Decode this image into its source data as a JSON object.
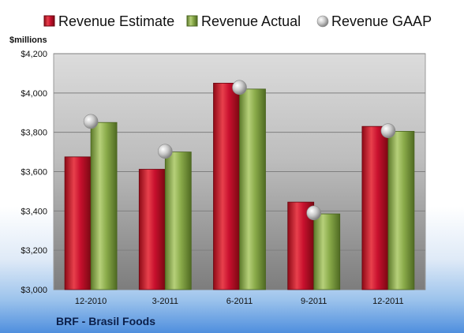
{
  "chart_data": {
    "type": "bar",
    "categories": [
      "12-2010",
      "3-2011",
      "6-2011",
      "9-2011",
      "12-2011"
    ],
    "series": [
      {
        "name": "Revenue Estimate",
        "values": [
          3675,
          3612,
          4050,
          3445,
          3830
        ],
        "color": "#c8102e"
      },
      {
        "name": "Revenue Actual",
        "values": [
          3850,
          3700,
          4020,
          3385,
          3805
        ],
        "color": "#8aab4a"
      },
      {
        "name": "Revenue GAAP",
        "values": [
          3855,
          3703,
          4028,
          3390,
          3808
        ],
        "color": "#c7c7c7",
        "marker": "sphere"
      }
    ],
    "ylabel": "$millions",
    "ylim": [
      3000,
      4200
    ],
    "yticks": [
      3000,
      3200,
      3400,
      3600,
      3800,
      4000,
      4200
    ],
    "ytick_labels": [
      "$3,000",
      "$3,200",
      "$3,400",
      "$3,600",
      "$3,800",
      "$4,000",
      "$4,200"
    ],
    "grid": true,
    "legend_position": "top"
  },
  "company": "BRF - Brasil Foods"
}
